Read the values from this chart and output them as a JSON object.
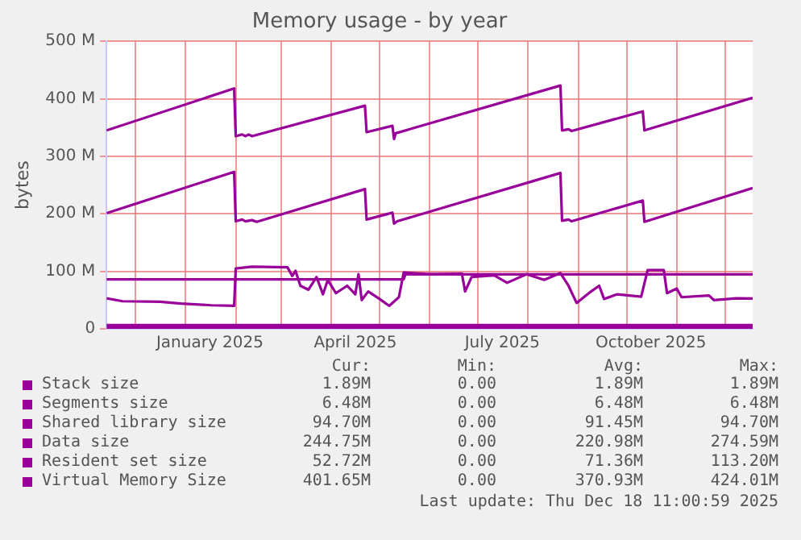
{
  "chart_data": {
    "type": "line",
    "title": "Memory usage - by year",
    "ylabel": "bytes",
    "xlim": [
      "2024-11-13",
      "2025-12-18"
    ],
    "xticks": [
      {
        "value": "2024-12-01",
        "label": null
      },
      {
        "value": "2025-01-01",
        "label": null
      },
      {
        "value": "2025-01-16",
        "label": "January 2025"
      },
      {
        "value": "2025-02-01",
        "label": null
      },
      {
        "value": "2025-03-01",
        "label": null
      },
      {
        "value": "2025-04-01",
        "label": null
      },
      {
        "value": "2025-04-16",
        "label": "April 2025"
      },
      {
        "value": "2025-05-01",
        "label": null
      },
      {
        "value": "2025-06-01",
        "label": null
      },
      {
        "value": "2025-07-01",
        "label": null
      },
      {
        "value": "2025-07-16",
        "label": "July 2025"
      },
      {
        "value": "2025-08-01",
        "label": null
      },
      {
        "value": "2025-09-01",
        "label": null
      },
      {
        "value": "2025-10-01",
        "label": null
      },
      {
        "value": "2025-10-16",
        "label": "October 2025"
      },
      {
        "value": "2025-11-01",
        "label": null
      },
      {
        "value": "2025-12-01",
        "label": null
      }
    ],
    "ylim": [
      0,
      500
    ],
    "yticks": [
      0,
      {
        "value": 100,
        "label": "100 M"
      },
      {
        "value": 200,
        "label": "200 M"
      },
      {
        "value": 300,
        "label": "300 M"
      },
      {
        "value": 400,
        "label": "400 M"
      },
      {
        "value": 500,
        "label": "500 M"
      }
    ],
    "grid": true,
    "legend": "bottom",
    "marker": "none",
    "line_style": "solid",
    "series": [
      {
        "name": "Stack size",
        "color": "#990099",
        "x": [
          "2024-11-13",
          "2025-12-18"
        ],
        "values": [
          1.89,
          1.89
        ]
      },
      {
        "name": "Segments size",
        "color": "#990099",
        "x": [
          "2024-11-13",
          "2025-12-18"
        ],
        "values": [
          6.48,
          6.48
        ]
      },
      {
        "name": "Shared library size",
        "color": "#990099",
        "x": [
          "2024-11-13",
          "2025-05-16",
          "2025-05-17",
          "2025-12-18"
        ],
        "values": [
          86,
          86,
          94.7,
          94.7
        ]
      },
      {
        "name": "Data size",
        "color": "#990099",
        "x": [
          "2024-11-13",
          "2025-01-31",
          "2025-02-01",
          "2025-02-05",
          "2025-02-07",
          "2025-02-11",
          "2025-02-14",
          "2025-04-22",
          "2025-04-23",
          "2025-05-09",
          "2025-05-10",
          "2025-05-12",
          "2025-08-21",
          "2025-08-22",
          "2025-08-26",
          "2025-08-28",
          "2025-10-11",
          "2025-10-12",
          "2025-12-18"
        ],
        "values": [
          201,
          273,
          187,
          190,
          187,
          189,
          186,
          243,
          190,
          202,
          183,
          187,
          271,
          188,
          190,
          187,
          223,
          186,
          244.75
        ]
      },
      {
        "name": "Resident set size",
        "color": "#990099",
        "x": [
          "2024-11-13",
          "2024-11-23",
          "2024-12-16",
          "2024-12-29",
          "2025-01-17",
          "2025-01-31",
          "2025-02-01",
          "2025-02-11",
          "2025-03-05",
          "2025-03-08",
          "2025-03-10",
          "2025-03-13",
          "2025-03-18",
          "2025-03-23",
          "2025-03-27",
          "2025-03-30",
          "2025-04-04",
          "2025-04-11",
          "2025-04-16",
          "2025-04-18",
          "2025-04-20",
          "2025-04-24",
          "2025-05-01",
          "2025-05-07",
          "2025-05-13",
          "2025-05-16",
          "2025-06-01",
          "2025-06-21",
          "2025-06-23",
          "2025-06-27",
          "2025-07-11",
          "2025-07-19",
          "2025-07-31",
          "2025-08-11",
          "2025-08-21",
          "2025-08-26",
          "2025-08-31",
          "2025-09-09",
          "2025-09-14",
          "2025-09-17",
          "2025-09-25",
          "2025-10-10",
          "2025-10-14",
          "2025-10-24",
          "2025-10-26",
          "2025-11-01",
          "2025-11-04",
          "2025-11-21",
          "2025-11-24",
          "2025-12-08",
          "2025-12-18"
        ],
        "values": [
          53,
          48,
          47,
          44,
          41,
          40,
          105,
          108,
          107,
          92,
          101,
          75,
          68,
          90,
          60,
          85,
          62,
          75,
          60,
          95,
          50,
          65,
          52,
          40,
          55,
          98,
          95,
          96,
          65,
          90,
          93,
          80,
          95,
          85,
          97,
          75,
          45,
          65,
          75,
          52,
          60,
          56,
          102,
          102,
          62,
          70,
          55,
          58,
          50,
          53,
          52.72
        ]
      },
      {
        "name": "Virtual Memory Size",
        "color": "#990099",
        "x": [
          "2024-11-13",
          "2025-01-31",
          "2025-02-01",
          "2025-02-05",
          "2025-02-07",
          "2025-02-09",
          "2025-02-11",
          "2025-04-22",
          "2025-04-23",
          "2025-05-09",
          "2025-05-10",
          "2025-05-11",
          "2025-08-21",
          "2025-08-22",
          "2025-08-26",
          "2025-08-28",
          "2025-10-11",
          "2025-10-12",
          "2025-12-18"
        ],
        "values": [
          345,
          418,
          335,
          338,
          335,
          338,
          335,
          388,
          342,
          353,
          330,
          340,
          423,
          345,
          347,
          344,
          378,
          345,
          401.65
        ]
      }
    ],
    "annotations": [
      "Cur:",
      "Min:",
      "Avg:",
      "Max:",
      "1.89M",
      "0.00",
      "1.89M",
      "1.89M",
      "6.48M",
      "0.00",
      "6.48M",
      "6.48M",
      "94.70M",
      "0.00",
      "91.45M",
      "94.70M",
      "244.75M",
      "0.00",
      "220.98M",
      "274.59M",
      "52.72M",
      "0.00",
      "71.36M",
      "113.20M",
      "401.65M",
      "0.00",
      "370.93M",
      "424.01M",
      "Last update: Thu Dec 18 11:00:59 2025"
    ]
  }
}
